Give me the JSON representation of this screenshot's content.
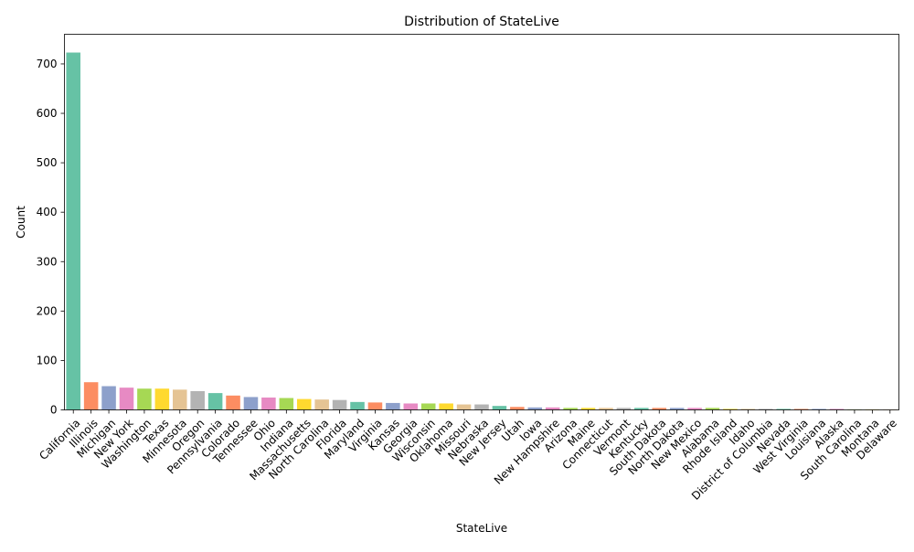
{
  "chart_data": {
    "type": "bar",
    "title": "Distribution of StateLive",
    "xlabel": "StateLive",
    "ylabel": "Count",
    "ylim": [
      0,
      760
    ],
    "yticks": [
      0,
      100,
      200,
      300,
      400,
      500,
      600,
      700
    ],
    "grid": false,
    "palette": [
      "#66c2a5",
      "#fc8d62",
      "#8da0cb",
      "#e78ac3",
      "#a6d854",
      "#ffd92f",
      "#e5c494",
      "#b3b3b3"
    ],
    "categories": [
      "California",
      "Illinois",
      "Michigan",
      "New York",
      "Washington",
      "Texas",
      "Minnesota",
      "Oregon",
      "Pennsylvania",
      "Colorado",
      "Tennessee",
      "Ohio",
      "Indiana",
      "Massachusetts",
      "North Carolina",
      "Florida",
      "Maryland",
      "Virginia",
      "Kansas",
      "Georgia",
      "Wisconsin",
      "Oklahoma",
      "Missouri",
      "Nebraska",
      "New Jersey",
      "Utah",
      "Iowa",
      "New Hampshire",
      "Arizona",
      "Maine",
      "Connecticut",
      "Vermont",
      "Kentucky",
      "South Dakota",
      "North Dakota",
      "New Mexico",
      "Alabama",
      "Rhode Island",
      "Idaho",
      "District of Columbia",
      "Nevada",
      "West Virginia",
      "Louisiana",
      "Alaska",
      "South Carolina",
      "Montana",
      "Delaware"
    ],
    "values": [
      723,
      56,
      48,
      45,
      43,
      43,
      41,
      38,
      34,
      29,
      26,
      25,
      24,
      22,
      21,
      20,
      16,
      15,
      14,
      13,
      13,
      13,
      11,
      11,
      8,
      6,
      5,
      5,
      4,
      4,
      4,
      4,
      4,
      4,
      4,
      4,
      4,
      2,
      2,
      2,
      2,
      2,
      2,
      2,
      1,
      1,
      1
    ]
  }
}
